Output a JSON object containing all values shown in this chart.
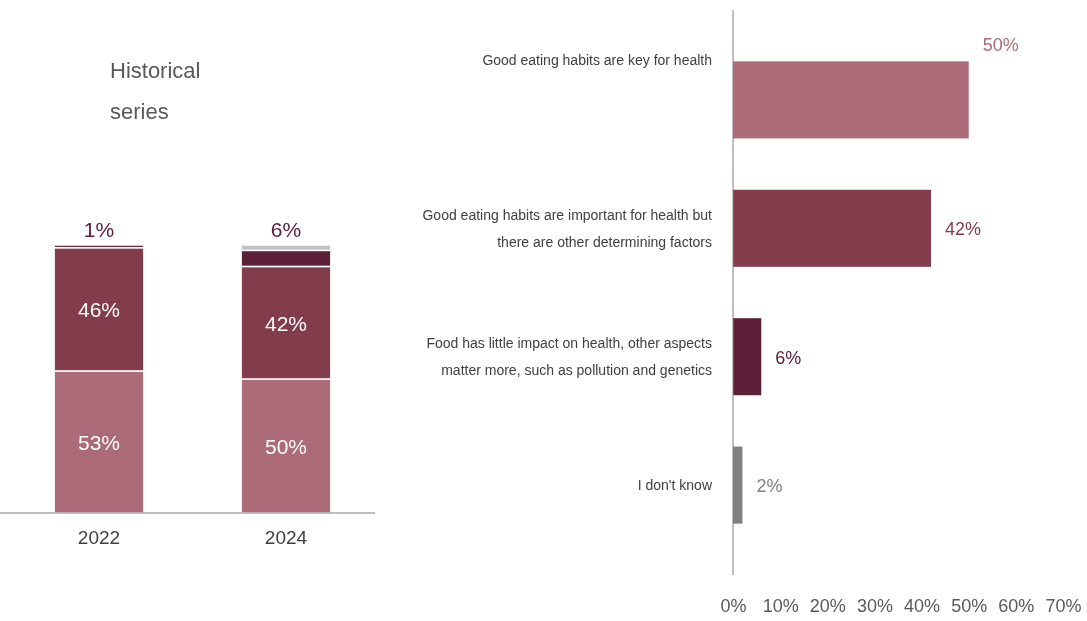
{
  "chart_data": [
    {
      "type": "bar",
      "stacked": true,
      "title": "Historical series",
      "categories": [
        "2022",
        "2024"
      ],
      "series": [
        {
          "color": "#ab6b78",
          "values": [
            53,
            50
          ],
          "value_labels": [
            "53%",
            "50%"
          ]
        },
        {
          "color": "#833c4b",
          "values": [
            46,
            42
          ],
          "value_labels": [
            "46%",
            "42%"
          ]
        },
        {
          "color": "#5c2139",
          "values": [
            1,
            6
          ],
          "value_labels": [
            "1%",
            "6%"
          ]
        },
        {
          "color": "#c0c0c0",
          "values": [
            null,
            2
          ],
          "value_labels": [
            null,
            null
          ]
        }
      ]
    },
    {
      "type": "bar",
      "orientation": "horizontal",
      "categories": [
        "Good eating habits are key for health",
        "Good eating habits are important for health but there are other determining factors",
        "Food has little impact on health, other aspects matter more, such as pollution and genetics",
        "I don't know"
      ],
      "values": [
        50,
        42,
        6,
        2
      ],
      "colors": [
        "#ab6b78",
        "#833c4b",
        "#5c2139",
        "#808080"
      ],
      "value_labels": [
        "50%",
        "42%",
        "6%",
        "2%"
      ],
      "xlim": [
        0,
        70
      ],
      "xticks": [
        {
          "value": 0,
          "label": "0%"
        },
        {
          "value": 10,
          "label": "10%"
        },
        {
          "value": 20,
          "label": "20%"
        },
        {
          "value": 30,
          "label": "30%"
        },
        {
          "value": 40,
          "label": "40%"
        },
        {
          "value": 50,
          "label": "50%"
        },
        {
          "value": 60,
          "label": "60%"
        },
        {
          "value": 70,
          "label": "70%"
        }
      ],
      "grid": false
    }
  ]
}
